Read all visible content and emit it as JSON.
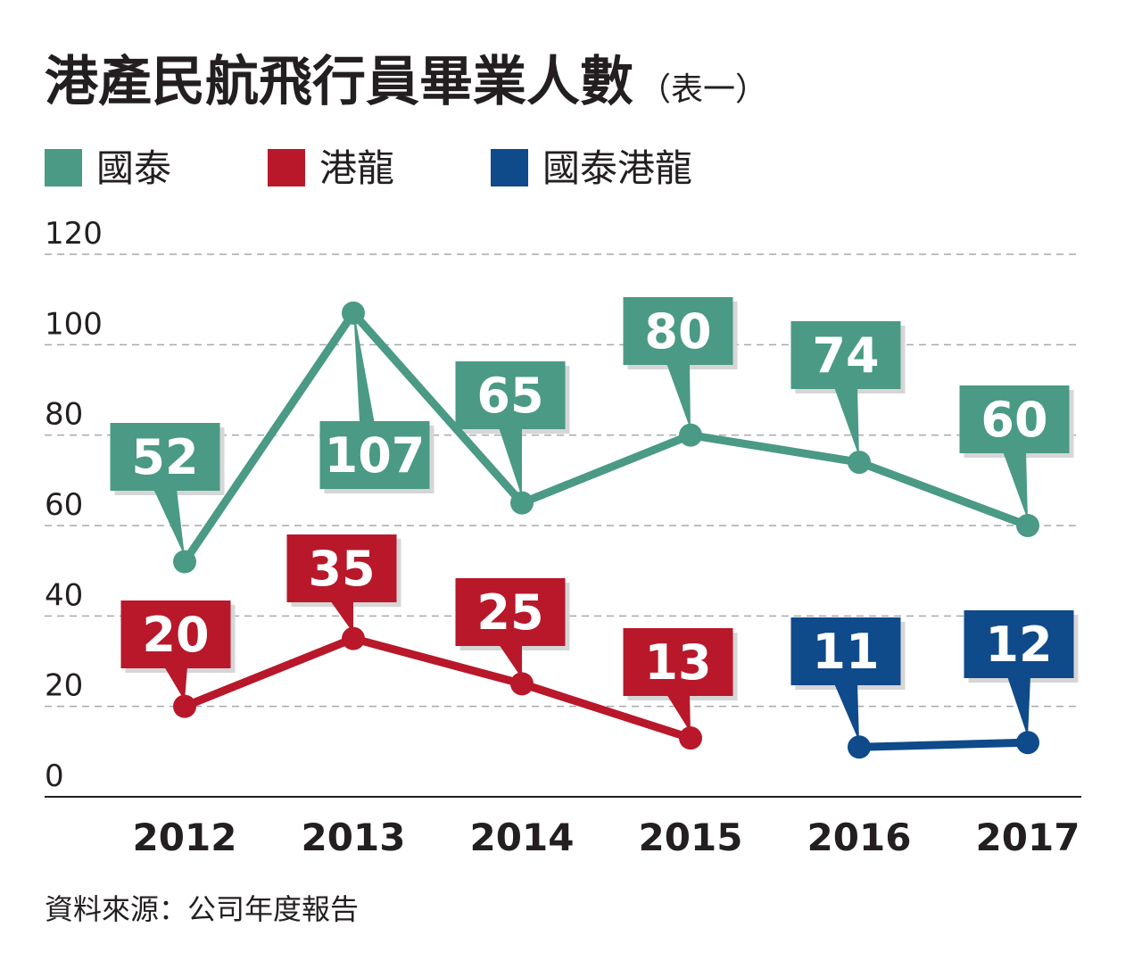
{
  "title": "港產民航飛行員畢業人數",
  "title_note": "（表一）",
  "source": "資料來源：公司年度報告",
  "chart_data": {
    "type": "line",
    "categories": [
      "2012",
      "2013",
      "2014",
      "2015",
      "2016",
      "2017"
    ],
    "ylim": [
      0,
      120
    ],
    "yticks": [
      0,
      20,
      40,
      60,
      80,
      100,
      120
    ],
    "grid": true,
    "legend_position": "top-left",
    "series": [
      {
        "name": "國泰",
        "color": "#4a9a85",
        "values": [
          52,
          107,
          65,
          80,
          74,
          60
        ]
      },
      {
        "name": "港龍",
        "color": "#b8182a",
        "values": [
          20,
          35,
          25,
          13,
          null,
          null
        ]
      },
      {
        "name": "國泰港龍",
        "color": "#0f4a8a",
        "values": [
          null,
          null,
          null,
          null,
          11,
          12
        ]
      }
    ]
  }
}
